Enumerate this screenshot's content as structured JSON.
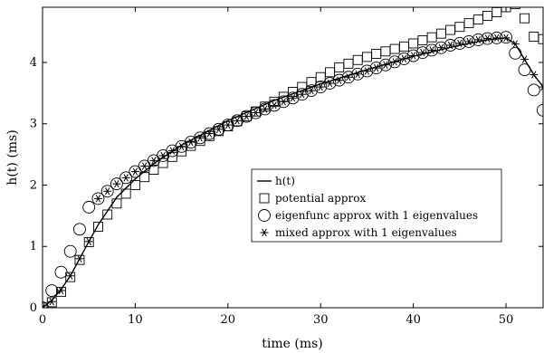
{
  "chart_data": {
    "type": "line",
    "xlabel": "time (ms)",
    "ylabel": "h(t) (ms)",
    "xlim": [
      0,
      54
    ],
    "ylim": [
      0,
      4.9
    ],
    "xticks": [
      "0",
      "10",
      "20",
      "30",
      "40",
      "50"
    ],
    "yticks": [
      "0",
      "1",
      "2",
      "3",
      "4"
    ],
    "grid": false,
    "legend_position": "center-right",
    "series": [
      {
        "name": "h(t)",
        "style": "line",
        "color": "#000000",
        "x": [
          0,
          1,
          2,
          3,
          4,
          5,
          6,
          8,
          10,
          12,
          15,
          20,
          25,
          30,
          35,
          40,
          45,
          48,
          50,
          51,
          52,
          53,
          54
        ],
        "y": [
          0,
          0.12,
          0.3,
          0.52,
          0.8,
          1.08,
          1.35,
          1.8,
          2.1,
          2.35,
          2.65,
          3.05,
          3.38,
          3.65,
          3.88,
          4.1,
          4.28,
          4.37,
          4.4,
          4.3,
          4.05,
          3.8,
          3.6
        ]
      },
      {
        "name": "potential approx",
        "style": "square",
        "color": "#000000",
        "x": [
          0,
          1,
          2,
          3,
          4,
          5,
          6,
          7,
          8,
          9,
          10,
          11,
          12,
          13,
          14,
          15,
          16,
          17,
          18,
          19,
          20,
          21,
          22,
          23,
          24,
          25,
          26,
          27,
          28,
          29,
          30,
          31,
          32,
          33,
          34,
          35,
          36,
          37,
          38,
          39,
          40,
          41,
          42,
          43,
          44,
          45,
          46,
          47,
          48,
          49,
          50,
          51,
          52,
          53,
          54
        ],
        "y": [
          0,
          0.09,
          0.26,
          0.5,
          0.78,
          1.07,
          1.32,
          1.52,
          1.7,
          1.86,
          2.0,
          2.13,
          2.25,
          2.36,
          2.46,
          2.55,
          2.64,
          2.72,
          2.8,
          2.88,
          2.96,
          3.04,
          3.12,
          3.2,
          3.28,
          3.36,
          3.44,
          3.52,
          3.6,
          3.68,
          3.76,
          3.84,
          3.92,
          3.98,
          4.04,
          4.09,
          4.14,
          4.18,
          4.22,
          4.26,
          4.31,
          4.36,
          4.41,
          4.47,
          4.53,
          4.58,
          4.64,
          4.7,
          4.76,
          4.82,
          4.9,
          4.95,
          4.72,
          4.42,
          4.38
        ]
      },
      {
        "name": "eigenfunc approx with 1 eigenvalues",
        "style": "circle",
        "color": "#000000",
        "x": [
          0,
          1,
          2,
          3,
          4,
          5,
          6,
          7,
          8,
          9,
          10,
          11,
          12,
          13,
          14,
          15,
          16,
          17,
          18,
          19,
          20,
          21,
          22,
          23,
          24,
          25,
          26,
          27,
          28,
          29,
          30,
          31,
          32,
          33,
          34,
          35,
          36,
          37,
          38,
          39,
          40,
          41,
          42,
          43,
          44,
          45,
          46,
          47,
          48,
          49,
          50,
          51,
          52,
          53,
          54
        ],
        "y": [
          0,
          0.28,
          0.58,
          0.92,
          1.28,
          1.64,
          1.78,
          1.9,
          2.02,
          2.12,
          2.22,
          2.31,
          2.4,
          2.48,
          2.56,
          2.63,
          2.7,
          2.77,
          2.84,
          2.91,
          2.98,
          3.05,
          3.12,
          3.18,
          3.24,
          3.3,
          3.36,
          3.42,
          3.48,
          3.54,
          3.6,
          3.66,
          3.71,
          3.76,
          3.81,
          3.86,
          3.91,
          3.96,
          4.01,
          4.06,
          4.11,
          4.16,
          4.2,
          4.24,
          4.28,
          4.31,
          4.34,
          4.37,
          4.39,
          4.4,
          4.41,
          4.15,
          3.88,
          3.55,
          3.22
        ]
      },
      {
        "name": "mixed approx with 1 eigenvalues",
        "style": "asterisk",
        "color": "#000000",
        "x": [
          0,
          1,
          2,
          3,
          4,
          5,
          6,
          7,
          8,
          9,
          10,
          11,
          12,
          13,
          14,
          15,
          16,
          17,
          18,
          19,
          20,
          21,
          22,
          23,
          24,
          25,
          26,
          27,
          28,
          29,
          30,
          31,
          32,
          33,
          34,
          35,
          36,
          37,
          38,
          39,
          40,
          41,
          42,
          43,
          44,
          45,
          46,
          47,
          48,
          49,
          50,
          51,
          52,
          53,
          54
        ],
        "y": [
          0,
          0.1,
          0.28,
          0.52,
          0.8,
          1.08,
          1.78,
          1.9,
          2.02,
          2.12,
          2.22,
          2.31,
          2.4,
          2.48,
          2.56,
          2.63,
          2.7,
          2.77,
          2.84,
          2.91,
          2.98,
          3.05,
          3.12,
          3.18,
          3.24,
          3.3,
          3.36,
          3.42,
          3.48,
          3.54,
          3.6,
          3.66,
          3.71,
          3.76,
          3.81,
          3.86,
          3.91,
          3.96,
          4.01,
          4.06,
          4.11,
          4.16,
          4.2,
          4.24,
          4.28,
          4.31,
          4.34,
          4.37,
          4.39,
          4.4,
          4.4,
          4.3,
          4.05,
          3.8,
          3.6
        ]
      }
    ]
  }
}
